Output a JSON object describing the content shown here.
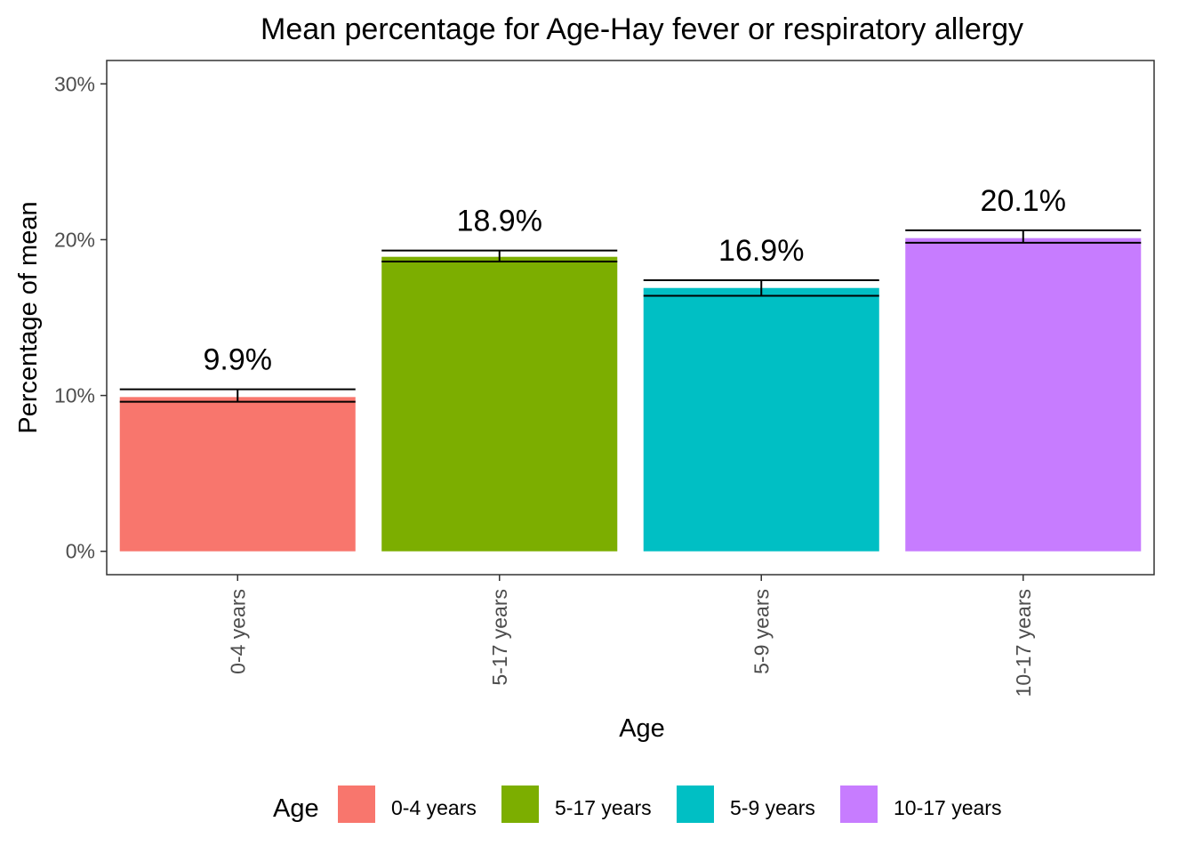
{
  "chart_data": {
    "type": "bar",
    "title": "Mean percentage for Age-Hay fever or respiratory allergy",
    "xlabel": "Age",
    "ylabel": "Percentage of mean",
    "categories": [
      "0-4 years",
      "5-17 years",
      "5-9 years",
      "10-17 years"
    ],
    "values": [
      9.9,
      18.9,
      16.9,
      20.1
    ],
    "value_labels": [
      "9.9%",
      "18.9%",
      "16.9%",
      "20.1%"
    ],
    "error_bars": [
      {
        "low": 9.6,
        "high": 10.4
      },
      {
        "low": 18.6,
        "high": 19.3
      },
      {
        "low": 16.4,
        "high": 17.4
      },
      {
        "low": 19.8,
        "high": 20.6
      }
    ],
    "colors": [
      "#F8766D",
      "#7CAE00",
      "#00BFC4",
      "#C77CFF"
    ],
    "ylim": [
      -1.5,
      31.5
    ],
    "yticks": [
      0,
      10,
      20,
      30
    ],
    "ytick_labels": [
      "0%",
      "10%",
      "20%",
      "30%"
    ],
    "grid": false,
    "legend": {
      "title": "Age",
      "position": "bottom",
      "entries": [
        "0-4 years",
        "5-17 years",
        "5-9 years",
        "10-17 years"
      ]
    }
  }
}
